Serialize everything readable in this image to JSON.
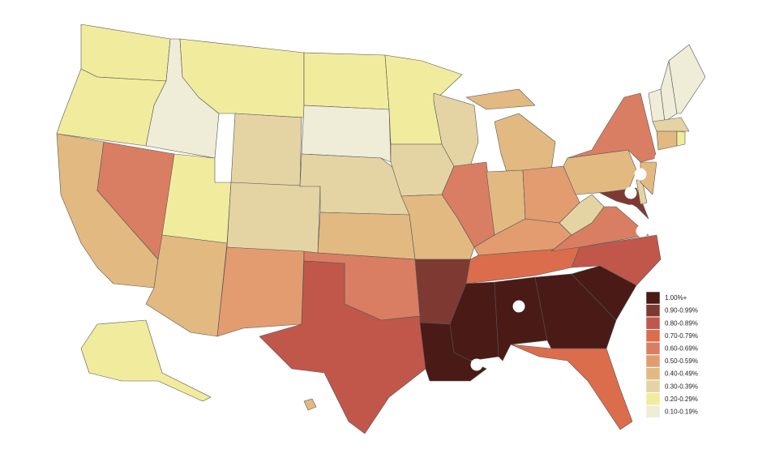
{
  "legend": [
    {
      "label": "1.00%+",
      "color": "#4a1a16"
    },
    {
      "label": "0.90-0.99%",
      "color": "#7e3a32"
    },
    {
      "label": "0.80-0.89%",
      "color": "#c1574a"
    },
    {
      "label": "0.70-0.79%",
      "color": "#db6d4c"
    },
    {
      "label": "0.60-0.69%",
      "color": "#d97e63"
    },
    {
      "label": "0.50-0.59%",
      "color": "#e29c70"
    },
    {
      "label": "0.40-0.49%",
      "color": "#e2b981"
    },
    {
      "label": "0.30-0.39%",
      "color": "#e5d4a3"
    },
    {
      "label": "0.20-0.29%",
      "color": "#f1ec9d"
    },
    {
      "label": "0.10-0.19%",
      "color": "#efecd8"
    }
  ],
  "state_classes": [
    8,
    8,
    6,
    4,
    9,
    8,
    7,
    8,
    6,
    7,
    5,
    8,
    9,
    7,
    6,
    4,
    2,
    8,
    7,
    6,
    1,
    0,
    7,
    4,
    6,
    6,
    6,
    5,
    5,
    3,
    0,
    0,
    0,
    3,
    0,
    2,
    4,
    7,
    6,
    4,
    1,
    7,
    6,
    9,
    9,
    9,
    7,
    6,
    8,
    8,
    6
  ]
}
